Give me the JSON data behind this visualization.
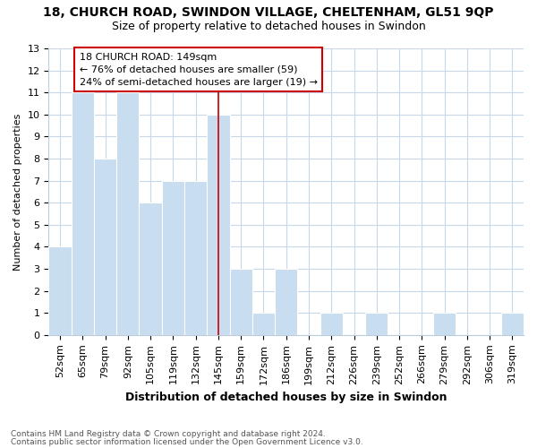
{
  "title": "18, CHURCH ROAD, SWINDON VILLAGE, CHELTENHAM, GL51 9QP",
  "subtitle": "Size of property relative to detached houses in Swindon",
  "xlabel": "Distribution of detached houses by size in Swindon",
  "ylabel": "Number of detached properties",
  "categories": [
    "52sqm",
    "65sqm",
    "79sqm",
    "92sqm",
    "105sqm",
    "119sqm",
    "132sqm",
    "145sqm",
    "159sqm",
    "172sqm",
    "186sqm",
    "199sqm",
    "212sqm",
    "226sqm",
    "239sqm",
    "252sqm",
    "266sqm",
    "279sqm",
    "292sqm",
    "306sqm",
    "319sqm"
  ],
  "values": [
    4,
    11,
    8,
    11,
    6,
    7,
    7,
    10,
    3,
    1,
    3,
    0,
    1,
    0,
    1,
    0,
    0,
    1,
    0,
    0,
    1
  ],
  "bar_color": "#c8ddef",
  "highlight_index": 7,
  "highlight_line_color": "#cc0000",
  "annotation_title": "18 CHURCH ROAD: 149sqm",
  "annotation_line1": "← 76% of detached houses are smaller (59)",
  "annotation_line2": "24% of semi-detached houses are larger (19) →",
  "annotation_box_color": "#ffffff",
  "annotation_box_edge": "#cc0000",
  "ylim": [
    0,
    13
  ],
  "yticks": [
    0,
    1,
    2,
    3,
    4,
    5,
    6,
    7,
    8,
    9,
    10,
    11,
    12,
    13
  ],
  "footnote1": "Contains HM Land Registry data © Crown copyright and database right 2024.",
  "footnote2": "Contains public sector information licensed under the Open Government Licence v3.0.",
  "bg_color": "#ffffff",
  "grid_color": "#c8d8e8",
  "title_fontsize": 10,
  "subtitle_fontsize": 9,
  "xlabel_fontsize": 9,
  "ylabel_fontsize": 8,
  "tick_fontsize": 8,
  "annotation_fontsize": 8,
  "footnote_fontsize": 6.5
}
